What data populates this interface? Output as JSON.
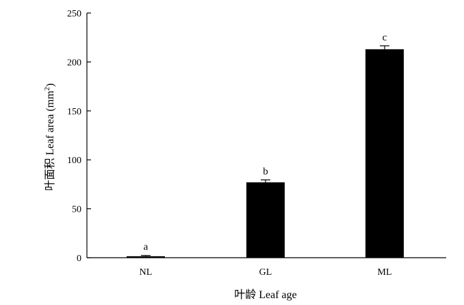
{
  "chart_data": {
    "type": "bar",
    "categories": [
      "NL",
      "GL",
      "ML"
    ],
    "values": [
      1.5,
      77,
      213
    ],
    "error": [
      0.8,
      2.5,
      3.5
    ],
    "significance_labels": [
      "a",
      "b",
      "c"
    ],
    "xlabel": "叶龄 Leaf age",
    "ylabel_text": "叶面积 Leaf area (mm",
    "ylabel_sup": "2",
    "ylabel_close": ")",
    "ylim": [
      0,
      250
    ],
    "yticks": [
      0,
      50,
      100,
      150,
      200,
      250
    ],
    "bar_color": "#000000",
    "grid": false
  }
}
